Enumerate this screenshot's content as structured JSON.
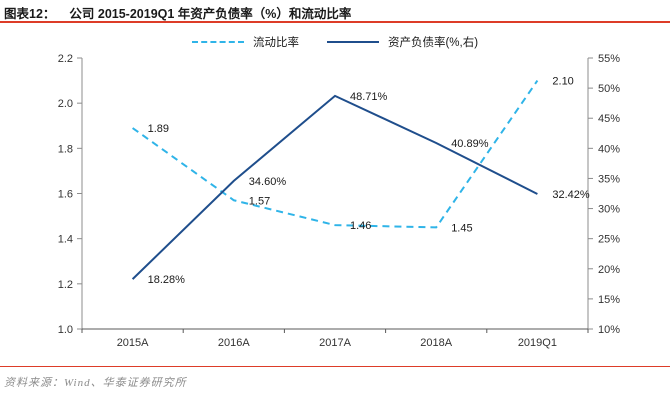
{
  "header": {
    "title_prefix": "图表12：",
    "title": "公司 2015-2019Q1 年资产负债率（%）和流动比率"
  },
  "footer": {
    "source": "资料来源：Wind、华泰证券研究所"
  },
  "colors": {
    "accent_red": "#dd3c28",
    "series_light_blue": "#2fb4e8",
    "series_dark_blue": "#1f4e8c",
    "axis_line": "#8c8c8c",
    "tick_label": "#333333",
    "data_label": "#1a1a1a"
  },
  "chart_data": {
    "type": "line",
    "categories": [
      "2015A",
      "2016A",
      "2017A",
      "2018A",
      "2019Q1"
    ],
    "series": [
      {
        "name": "流动比率",
        "axis": "left",
        "style": "dashed",
        "color": "#2fb4e8",
        "values": [
          1.89,
          1.57,
          1.46,
          1.45,
          2.1
        ],
        "labels": [
          "1.89",
          "1.57",
          "1.46",
          "1.45",
          "2.10"
        ]
      },
      {
        "name": "资产负债率(%,右)",
        "axis": "right",
        "style": "solid",
        "color": "#1f4e8c",
        "values": [
          18.28,
          34.6,
          48.71,
          40.89,
          32.42
        ],
        "labels": [
          "18.28%",
          "34.60%",
          "48.71%",
          "40.89%",
          "32.42%"
        ]
      }
    ],
    "left_axis": {
      "min": 1.0,
      "max": 2.2,
      "step": 0.2,
      "ticks": [
        "1.0",
        "1.2",
        "1.4",
        "1.6",
        "1.8",
        "2.0",
        "2.2"
      ]
    },
    "right_axis": {
      "min": 10,
      "max": 55,
      "step": 5,
      "ticks": [
        "10%",
        "15%",
        "20%",
        "25%",
        "30%",
        "35%",
        "40%",
        "45%",
        "50%",
        "55%"
      ]
    },
    "grid": false,
    "legend_position": "top"
  }
}
